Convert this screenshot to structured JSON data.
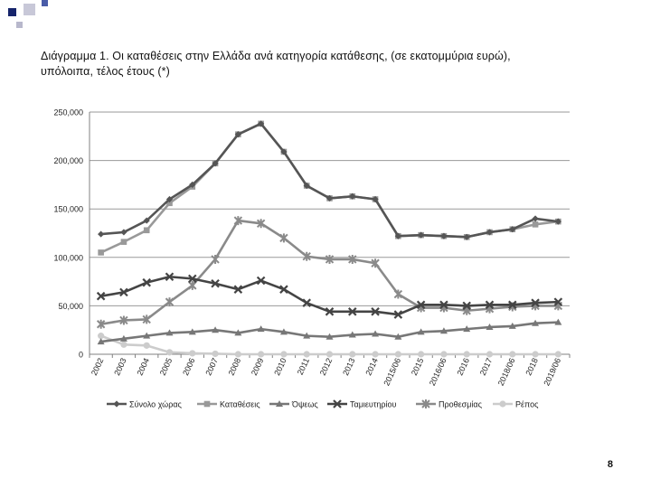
{
  "page": {
    "title_line1": "Διάγραμμα 1. Οι καταθέσεις στην Ελλάδα ανά κατηγορία κατάθεσης, (σε εκατομμύρια ευρώ),",
    "title_line2": "υπόλοιπα, τέλος έτους (*)",
    "page_number": "8"
  },
  "chart_data": {
    "type": "line",
    "title": "Διάγραμμα 1. Οι καταθέσεις στην Ελλάδα ανά κατηγορία κατάθεσης, (σε εκατομμύρια ευρώ), υπόλοιπα, τέλος έτους (*)",
    "xlabel": "",
    "ylabel": "",
    "ylim": [
      0,
      250000
    ],
    "yticks": [
      0,
      50000,
      100000,
      150000,
      200000,
      250000
    ],
    "ytick_labels": [
      "0",
      "50,000",
      "100,000",
      "150,000",
      "200,000",
      "250,000"
    ],
    "grid": true,
    "legend_position": "bottom",
    "categories": [
      "2002",
      "2003",
      "2004",
      "2005",
      "2006",
      "2007",
      "2008",
      "2009",
      "2010",
      "2011",
      "2012",
      "2013",
      "2014",
      "2015/06",
      "2015",
      "2016/06",
      "2016",
      "2017",
      "2018/06",
      "2018",
      "2019/06"
    ],
    "series": [
      {
        "name": "Σύνολο χώρας",
        "color": "#555555",
        "marker": "diamond",
        "values": [
          124000,
          126000,
          138000,
          160000,
          175000,
          197000,
          227000,
          238000,
          209000,
          174000,
          161000,
          163000,
          160000,
          122000,
          123000,
          122000,
          121000,
          126000,
          129000,
          140000,
          137000
        ]
      },
      {
        "name": "Καταθέσεις",
        "color": "#999999",
        "marker": "square",
        "values": [
          105000,
          116000,
          128000,
          156000,
          173000,
          197000,
          227000,
          238000,
          209000,
          174000,
          161000,
          163000,
          160000,
          122000,
          123000,
          122000,
          121000,
          126000,
          129000,
          134000,
          137000
        ]
      },
      {
        "name": "Όψεως",
        "color": "#777777",
        "marker": "triangle",
        "values": [
          13000,
          16000,
          19000,
          22000,
          23000,
          25000,
          22000,
          26000,
          23000,
          19000,
          18000,
          20000,
          21000,
          18000,
          23000,
          24000,
          26000,
          28000,
          29000,
          32000,
          33000
        ]
      },
      {
        "name": "Ταμιευτηρίου",
        "color": "#444444",
        "marker": "x",
        "values": [
          60000,
          64000,
          74000,
          80000,
          78000,
          73000,
          67000,
          76000,
          67000,
          53000,
          44000,
          44000,
          44000,
          41000,
          51000,
          51000,
          50000,
          51000,
          51000,
          53000,
          54000
        ]
      },
      {
        "name": "Προθεσμίας",
        "color": "#8a8a8a",
        "marker": "star",
        "values": [
          31000,
          35000,
          36000,
          54000,
          71000,
          98000,
          138000,
          135000,
          120000,
          101000,
          98000,
          98000,
          94000,
          62000,
          48000,
          48000,
          45000,
          47000,
          49000,
          50000,
          50000
        ]
      },
      {
        "name": "Ρέπος",
        "color": "#cccccc",
        "marker": "circle",
        "values": [
          19000,
          10000,
          9000,
          2000,
          1000,
          500,
          0,
          0,
          0,
          0,
          0,
          0,
          0,
          0,
          0,
          0,
          0,
          0,
          0,
          0,
          0
        ]
      }
    ]
  }
}
